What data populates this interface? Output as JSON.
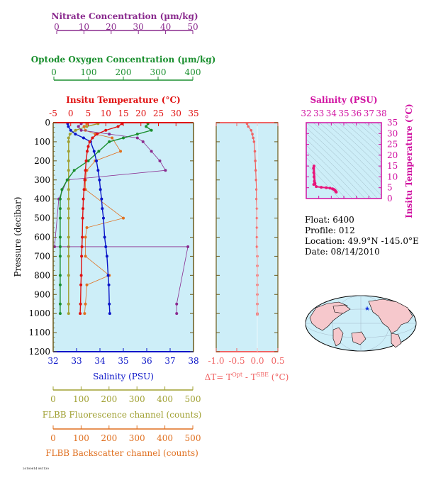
{
  "colors": {
    "panel_bg": "#cdeef8",
    "nitrate": "#8a2a8e",
    "oxygen": "#1a8f2e",
    "temperature": "#e01010",
    "salinity": "#0a14c8",
    "fluorescence": "#a0a032",
    "backscatter": "#e07020",
    "delta_t": "#f06464",
    "ts_salinity": "#d010a0",
    "ts_curve": "#e8147a"
  },
  "axes": {
    "nitrate": {
      "label": "Nitrate Concentration (µm/kg)",
      "ticks": [
        "0",
        "10",
        "20",
        "30",
        "40",
        "50"
      ]
    },
    "oxygen": {
      "label": "Optode Oxygen Concentration (µm/kg)",
      "ticks": [
        "0",
        "100",
        "200",
        "300",
        "400"
      ]
    },
    "temperature": {
      "label": "Insitu Temperature (°C)",
      "ticks": [
        "-5",
        "0",
        "5",
        "10",
        "15",
        "20",
        "25",
        "30",
        "35"
      ]
    },
    "salinity": {
      "label": "Salinity (PSU)",
      "ticks": [
        "32",
        "33",
        "34",
        "35",
        "36",
        "37",
        "38"
      ]
    },
    "pressure": {
      "label": "Pressure (decibar)",
      "ticks": [
        "0",
        "100",
        "200",
        "300",
        "400",
        "500",
        "600",
        "700",
        "800",
        "900",
        "1000",
        "1100",
        "1200"
      ]
    },
    "fluorescence": {
      "label": "FLBB Fluorescence channel (counts)",
      "ticks": [
        "0",
        "100",
        "200",
        "300",
        "400",
        "500"
      ]
    },
    "backscatter": {
      "label": "FLBB Backscatter channel (counts)",
      "ticks": [
        "0",
        "100",
        "200",
        "300",
        "400",
        "500"
      ]
    },
    "delta_t": {
      "label_main": "ΔT= T",
      "label_sup1": "Opt",
      "label_mid": " - T",
      "label_sup2": "SBE",
      "label_end": " (°C)",
      "ticks": [
        "-1.0",
        "-0.5",
        "0.0",
        "0.5"
      ]
    },
    "ts_salinity": {
      "label": "Salinity (PSU)",
      "ticks": [
        "32",
        "33",
        "34",
        "35",
        "36",
        "37",
        "38"
      ]
    },
    "ts_temperature": {
      "label": "Insitu Temperature (°C)",
      "ticks": [
        "0",
        "5",
        "10",
        "15",
        "20",
        "25",
        "30",
        "35"
      ]
    }
  },
  "info": {
    "float": "Float:  6400",
    "profile": "Profile:  012",
    "location": "Location:  49.9°N  -145.0°E",
    "date": "Date:  08/14/2010"
  },
  "stamp": "20100814 081130",
  "chart_data": [
    {
      "type": "line",
      "title": "",
      "ylabel": "Pressure (decibar)",
      "ylim": [
        1200,
        0
      ],
      "series": [
        {
          "name": "Insitu Temperature",
          "xlim": [
            -5,
            35
          ],
          "x": [
            14.6,
            13.5,
            10.0,
            7.5,
            6.2,
            5.4,
            5.0,
            4.7,
            4.4,
            4.2,
            4.0,
            3.8,
            3.6,
            3.5,
            3.4,
            3.3,
            3.2,
            3.1,
            3.0,
            2.9,
            2.8,
            2.7
          ],
          "y": [
            5,
            20,
            40,
            60,
            80,
            100,
            125,
            150,
            200,
            250,
            300,
            350,
            400,
            450,
            500,
            600,
            650,
            700,
            800,
            850,
            950,
            1000
          ]
        },
        {
          "name": "Salinity",
          "xlim": [
            32,
            38
          ],
          "x": [
            32.62,
            32.65,
            32.75,
            32.95,
            33.3,
            33.6,
            33.75,
            33.85,
            33.92,
            33.98,
            34.02,
            34.07,
            34.1,
            34.15,
            34.2,
            34.25,
            34.3,
            34.35,
            34.38,
            34.4,
            34.42
          ],
          "y": [
            5,
            20,
            40,
            60,
            80,
            100,
            150,
            200,
            250,
            300,
            350,
            400,
            450,
            500,
            600,
            650,
            700,
            800,
            850,
            950,
            1000
          ]
        },
        {
          "name": "Nitrate Concentration",
          "xlim": [
            0,
            50
          ],
          "x": [
            10,
            9,
            10,
            20,
            30,
            32,
            35,
            38,
            40,
            5,
            2,
            0.5,
            48,
            44,
            44
          ],
          "y": [
            5,
            20,
            40,
            60,
            80,
            100,
            150,
            200,
            250,
            300,
            400,
            650,
            650,
            950,
            1000
          ]
        },
        {
          "name": "Optode Oxygen Concentration",
          "xlim": [
            0,
            400
          ],
          "x": [
            270,
            265,
            280,
            240,
            200,
            160,
            130,
            100,
            60,
            40,
            25,
            20,
            20,
            20,
            20,
            20,
            20,
            20,
            20,
            20,
            20
          ],
          "y": [
            5,
            20,
            40,
            60,
            80,
            100,
            150,
            200,
            250,
            300,
            350,
            400,
            450,
            500,
            600,
            650,
            700,
            800,
            850,
            950,
            1000
          ]
        },
        {
          "name": "FLBB Fluorescence channel",
          "xlim": [
            0,
            500
          ],
          "x": [
            160,
            120,
            80,
            60,
            55,
            55,
            55,
            55,
            55,
            55,
            55,
            55,
            55,
            55,
            55,
            55,
            55,
            55,
            55,
            55
          ],
          "y": [
            5,
            20,
            40,
            60,
            80,
            100,
            150,
            200,
            250,
            300,
            350,
            400,
            450,
            500,
            600,
            650,
            700,
            800,
            950,
            1000
          ]
        },
        {
          "name": "FLBB Backscatter channel",
          "xlim": [
            0,
            500
          ],
          "x": [
            120,
            110,
            115,
            150,
            210,
            240,
            150,
            120,
            115,
            115,
            250,
            120,
            115,
            115,
            200,
            120,
            115,
            112
          ],
          "y": [
            5,
            20,
            40,
            60,
            80,
            150,
            200,
            250,
            300,
            350,
            500,
            550,
            600,
            700,
            800,
            850,
            950,
            1000
          ]
        }
      ]
    },
    {
      "type": "scatter",
      "xlabel": "ΔT= T(Opt) - T(SBE) (°C)",
      "ylim": [
        1200,
        0
      ],
      "xlim": [
        -1.0,
        0.5
      ],
      "x": [
        -0.25,
        -0.22,
        -0.15,
        -0.12,
        -0.1,
        -0.08,
        -0.06,
        -0.05,
        -0.04,
        -0.03,
        -0.02,
        -0.02,
        -0.01,
        -0.01,
        -0.01,
        -0.01,
        -0.01,
        0.0,
        0.0,
        0.0,
        0.0,
        0.0,
        0.0,
        0.0,
        0.0
      ],
      "y": [
        5,
        20,
        40,
        60,
        80,
        100,
        150,
        200,
        250,
        300,
        350,
        400,
        450,
        500,
        550,
        600,
        650,
        700,
        750,
        800,
        850,
        900,
        950,
        1000,
        1005
      ]
    },
    {
      "type": "line",
      "xlabel": "Salinity (PSU)",
      "ylabel": "Insitu Temperature (°C)",
      "xlim": [
        32,
        38
      ],
      "ylim": [
        0,
        35
      ],
      "x": [
        32.6,
        32.65,
        32.62,
        32.6,
        32.58,
        32.62,
        32.7,
        32.8,
        33.2,
        33.6,
        33.9,
        34.1,
        34.2,
        34.3,
        34.35,
        34.4
      ],
      "y": [
        6.5,
        8,
        10,
        12,
        14,
        15,
        7,
        5.5,
        5.2,
        5.0,
        4.8,
        4.5,
        4.2,
        3.8,
        3.3,
        3.0
      ]
    }
  ]
}
